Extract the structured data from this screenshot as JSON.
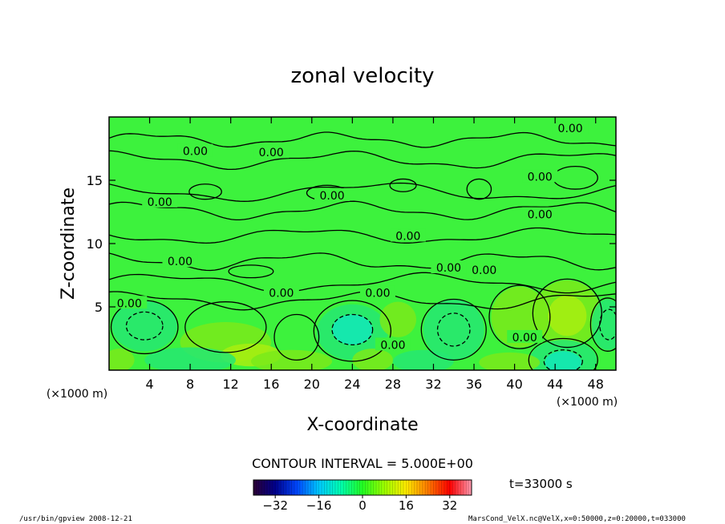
{
  "chart_data": {
    "type": "heatmap",
    "title": "zonal velocity",
    "xlabel": "X-coordinate",
    "ylabel": "Z-coordinate",
    "x_unit_left": "(×1000 m)",
    "x_unit_right": "(×1000 m)",
    "xlim": [
      0,
      50
    ],
    "ylim": [
      0,
      20
    ],
    "x_ticks": [
      4,
      8,
      12,
      16,
      20,
      24,
      28,
      32,
      36,
      40,
      44,
      48
    ],
    "y_ticks": [
      5,
      10,
      15
    ],
    "contour_interval_text": "CONTOUR INTERVAL = 5.000E+00",
    "time_text": "t=33000 s",
    "contour_labels": [
      "0.00",
      "0.00",
      "0.00",
      "0.00",
      "0.00",
      "0.00",
      "0.00",
      "0.00",
      "0.00",
      "0.00",
      "0.00",
      "0.00",
      "0.00",
      "0.00",
      "0.00",
      "0.00"
    ],
    "colorbar": {
      "range": [
        -40,
        40
      ],
      "ticks": [
        -32,
        -16,
        0,
        16,
        32
      ],
      "colors": [
        "#2b0033",
        "#00008c",
        "#0047ff",
        "#00c8ff",
        "#00ffb0",
        "#22ff22",
        "#9cff00",
        "#ffea00",
        "#ff7a00",
        "#ff0000",
        "#ff9ab0"
      ]
    },
    "field_colors": {
      "background": "#3df23d",
      "weak_negative": "#26e872",
      "strong_negative": "#12e8b8",
      "weak_positive": "#7aea1a",
      "strong_positive": "#a8ee10"
    }
  },
  "footer": {
    "left": "/usr/bin/gpview   2008-12-21",
    "right": "MarsCond_VelX.nc@VelX,x=0:50000,z=0:20000,t=033000"
  }
}
